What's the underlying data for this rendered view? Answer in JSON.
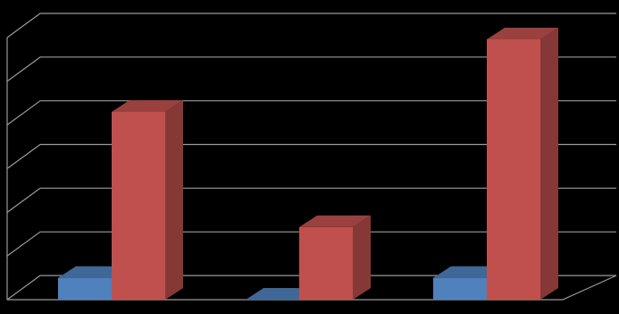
{
  "chart_data": {
    "type": "bar3d",
    "categories": [
      null,
      null,
      null
    ],
    "series": [
      {
        "color": "#4f81bd",
        "values": [
          0.5,
          0,
          0.5
        ]
      },
      {
        "color": "#c0504d",
        "values": [
          4.3,
          1.66,
          5.96
        ]
      }
    ],
    "ylim": [
      0,
      6
    ],
    "yticks": [
      0,
      1,
      2,
      3,
      4,
      5,
      6
    ],
    "grid": true
  }
}
